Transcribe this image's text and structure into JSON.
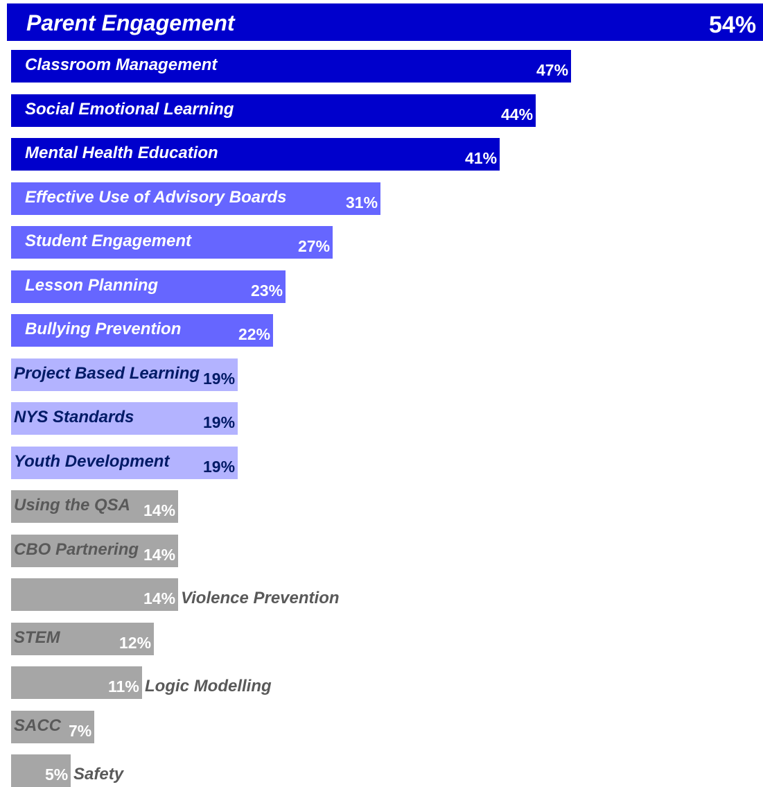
{
  "chart_data": {
    "type": "bar",
    "orientation": "horizontal",
    "categories": [
      "Parent Engagement",
      "Classroom Management",
      "Social Emotional Learning",
      "Mental Health Education",
      "Effective Use of Advisory Boards",
      "Student Engagement",
      "Lesson Planning",
      "Bullying Prevention",
      "Project Based Learning",
      "NYS Standards",
      "Youth Development",
      "Using the QSA",
      "CBO Partnering",
      "Violence Prevention",
      "STEM",
      "Logic Modelling",
      "SACC",
      "Safety"
    ],
    "values": [
      54,
      47,
      44,
      41,
      31,
      27,
      23,
      22,
      19,
      19,
      19,
      14,
      14,
      14,
      12,
      11,
      7,
      5
    ],
    "value_labels": [
      "54%",
      "47%",
      "44%",
      "41%",
      "31%",
      "27%",
      "23%",
      "22%",
      "19%",
      "19%",
      "19%",
      "14%",
      "14%",
      "14%",
      "12%",
      "11%",
      "7%",
      "5%"
    ],
    "unit": "%",
    "tier_colors": {
      "dark_blue": "#0000cc",
      "medium_blue": "#6666ff",
      "light_blue": "#b3b3ff",
      "gray": "#a6a6a6"
    },
    "label_colors": {
      "on_dark": "#ffffff",
      "on_light": "#001a66",
      "on_gray": "#595959"
    },
    "grid": false,
    "legend": "none",
    "axes_visible": false
  }
}
